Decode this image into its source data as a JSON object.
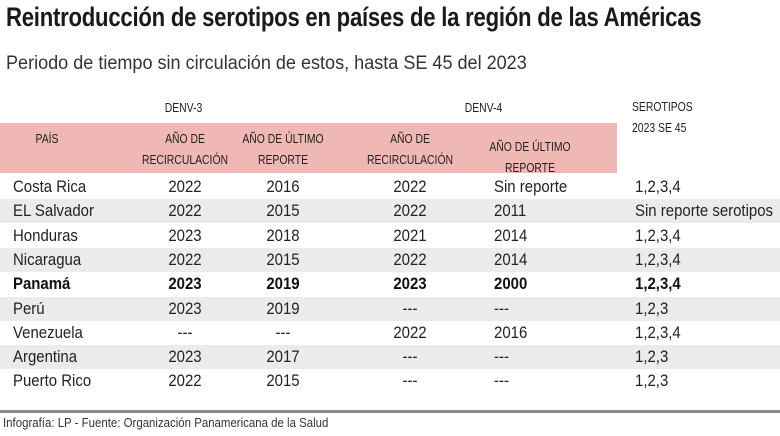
{
  "title": "Reintroducción de serotipos en países de la región de las Américas",
  "subtitle": "Periodo de tiempo sin circulación de estos, hasta SE 45 del 2023",
  "footer": "Infografía: LP - Fuente: Organización Panamericana de la Salud",
  "chart_data": {
    "type": "table",
    "groups": [
      "DENV-3",
      "DENV-4"
    ],
    "columns": [
      "PAÍS",
      "AÑO DE RECIRCULACIÓN",
      "AÑO DE ÚLTIMO REPORTE",
      "AÑO DE RECIRCULACIÓN",
      "AÑO DE ÚLTIMO REPORTE",
      "SEROTIPOS 2023 SE 45"
    ],
    "header_color": "#efb8b5",
    "stripe_color": "#ebebeb",
    "highlight_row": "Panamá",
    "rows": [
      [
        "Costa Rica",
        "2022",
        "2016",
        "2022",
        "Sin reporte",
        "1,2,3,4"
      ],
      [
        "EL Salvador",
        "2022",
        "2015",
        "2022",
        "2011",
        "Sin reporte serotipos"
      ],
      [
        "Honduras",
        "2023",
        "2018",
        "2021",
        "2014",
        "1,2,3,4"
      ],
      [
        "Nicaragua",
        "2022",
        "2015",
        "2022",
        "2014",
        "1,2,3,4"
      ],
      [
        "Panamá",
        "2023",
        "2019",
        "2023",
        "2000",
        "1,2,3,4"
      ],
      [
        "Perú",
        "2023",
        "2019",
        "---",
        "---",
        "1,2,3"
      ],
      [
        "Venezuela",
        "---",
        "---",
        "2022",
        "2016",
        "1,2,3,4"
      ],
      [
        "Argentina",
        "2023",
        "2017",
        "---",
        "---",
        "1,2,3"
      ],
      [
        "Puerto Rico",
        "2022",
        "2015",
        "---",
        "---",
        "1,2,3"
      ]
    ]
  }
}
